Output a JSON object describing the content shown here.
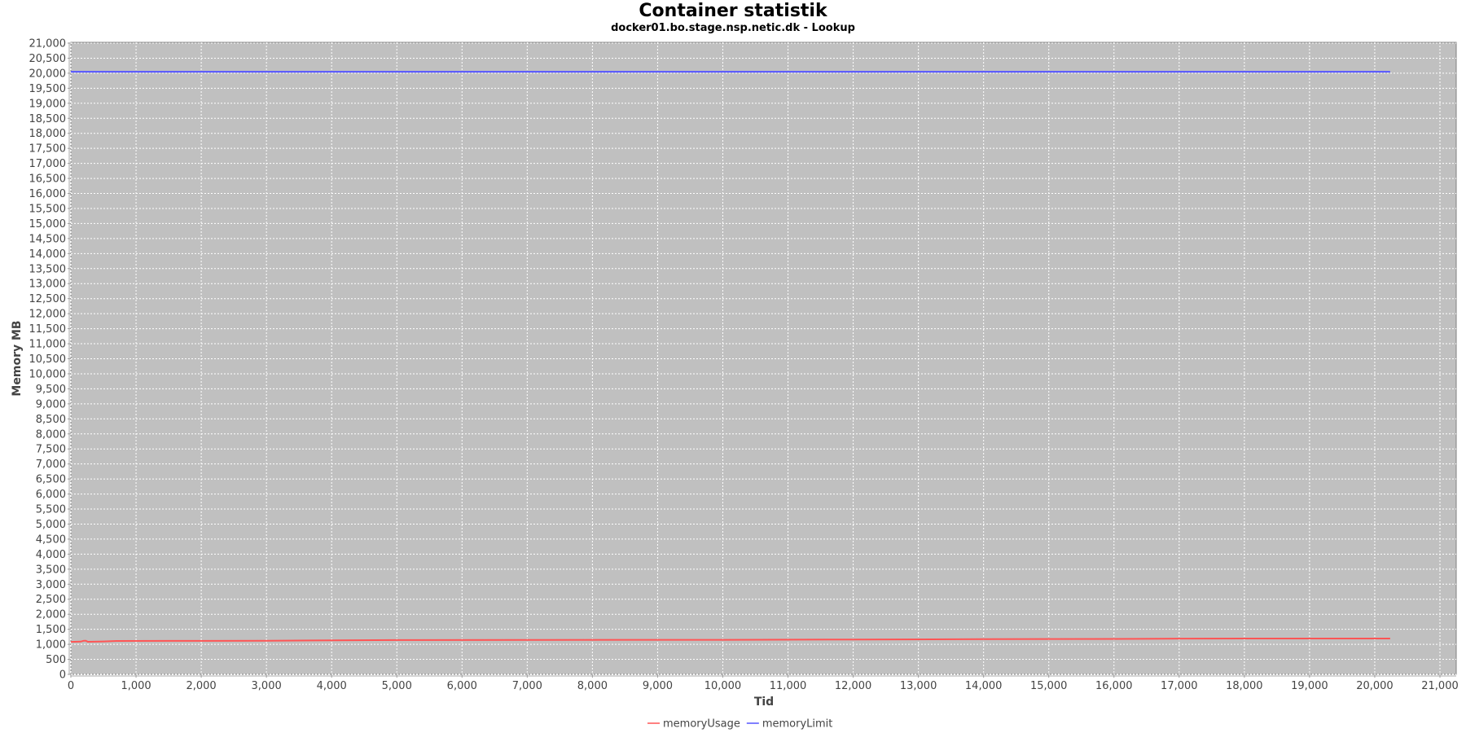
{
  "chart_data": {
    "type": "line",
    "title": "Container statistik",
    "subtitle": "docker01.bo.stage.nsp.netic.dk - Lookup",
    "xlabel": "Tid",
    "ylabel": "Memory MB",
    "xlim": [
      0,
      21250
    ],
    "ylim": [
      0,
      21000
    ],
    "x_ticks": [
      0,
      1000,
      2000,
      3000,
      4000,
      5000,
      6000,
      7000,
      8000,
      9000,
      10000,
      11000,
      12000,
      13000,
      14000,
      15000,
      16000,
      17000,
      18000,
      19000,
      20000,
      21000
    ],
    "y_ticks": [
      0,
      500,
      1000,
      1500,
      2000,
      2500,
      3000,
      3500,
      4000,
      4500,
      5000,
      5500,
      6000,
      6500,
      7000,
      7500,
      8000,
      8500,
      9000,
      9500,
      10000,
      10500,
      11000,
      11500,
      12000,
      12500,
      13000,
      13500,
      14000,
      14500,
      15000,
      15500,
      16000,
      16500,
      17000,
      17500,
      18000,
      18500,
      19000,
      19500,
      20000,
      20500,
      21000
    ],
    "grid": true,
    "plot_background": "#c0c0c0",
    "legend_position": "bottom",
    "series": [
      {
        "name": "memoryUsage",
        "color": "#ff5555",
        "x": [
          0,
          150,
          200,
          230,
          260,
          500,
          700,
          1500,
          3000,
          4000,
          5000,
          7000,
          10000,
          12000,
          14000,
          16000,
          17000,
          18000,
          19000,
          20237
        ],
        "y": [
          1080,
          1090,
          1120,
          1120,
          1085,
          1095,
          1110,
          1115,
          1120,
          1130,
          1140,
          1145,
          1150,
          1160,
          1170,
          1180,
          1190,
          1192,
          1192,
          1192
        ]
      },
      {
        "name": "memoryLimit",
        "color": "#5555ff",
        "x": [
          0,
          20237
        ],
        "y": [
          20050,
          20050
        ]
      }
    ]
  }
}
